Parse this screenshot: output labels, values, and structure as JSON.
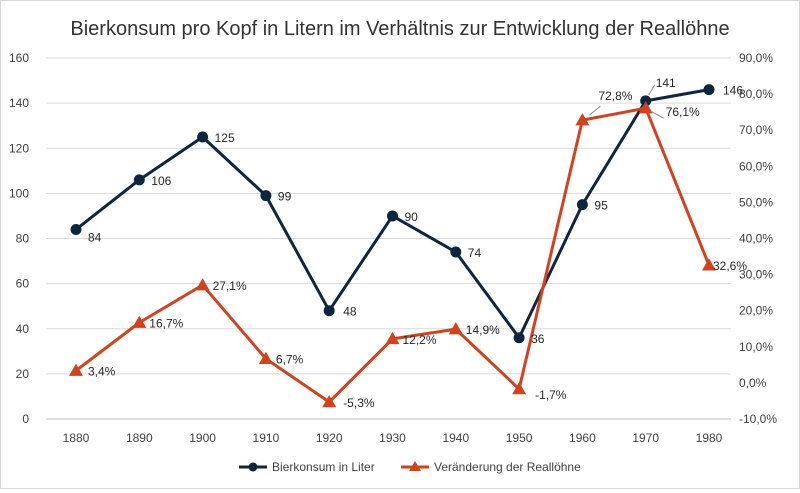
{
  "chart_data": {
    "type": "line",
    "title": "Bierkonsum pro Kopf in Litern im Verhältnis zur Entwicklung der Reallöhne",
    "categories": [
      "1880",
      "1890",
      "1900",
      "1910",
      "1920",
      "1930",
      "1940",
      "1950",
      "1960",
      "1970",
      "1980"
    ],
    "y_axis_left": {
      "min": 0,
      "max": 160,
      "step": 20,
      "ticks": [
        "0",
        "20",
        "40",
        "60",
        "80",
        "100",
        "120",
        "140",
        "160"
      ]
    },
    "y_axis_right": {
      "min": -10,
      "max": 90,
      "step": 10,
      "ticks": [
        "-10,0%",
        "0,0%",
        "10,0%",
        "20,0%",
        "30,0%",
        "40,0%",
        "50,0%",
        "60,0%",
        "70,0%",
        "80,0%",
        "90,0%"
      ]
    },
    "grid": true,
    "legend_position": "bottom",
    "series": [
      {
        "name": "Bierkonsum in Liter",
        "axis": "left",
        "color": "#0d2640",
        "marker": "circle",
        "values": [
          84,
          106,
          125,
          99,
          48,
          90,
          74,
          36,
          95,
          141,
          146
        ],
        "labels": [
          "84",
          "106",
          "125",
          "99",
          "48",
          "90",
          "74",
          "36",
          "95",
          "141",
          "146"
        ]
      },
      {
        "name": "Veränderung der Reallöhne",
        "axis": "right",
        "color": "#d4421b",
        "marker": "triangle",
        "values": [
          3.4,
          16.7,
          27.1,
          6.7,
          -5.3,
          12.2,
          14.9,
          -1.7,
          72.8,
          76.1,
          32.6
        ],
        "labels": [
          "3,4%",
          "16,7%",
          "27,1%",
          "6,7%",
          "-5,3%",
          "12,2%",
          "14,9%",
          "-1,7%",
          "72,8%",
          "76,1%",
          "32,6%"
        ]
      }
    ]
  }
}
